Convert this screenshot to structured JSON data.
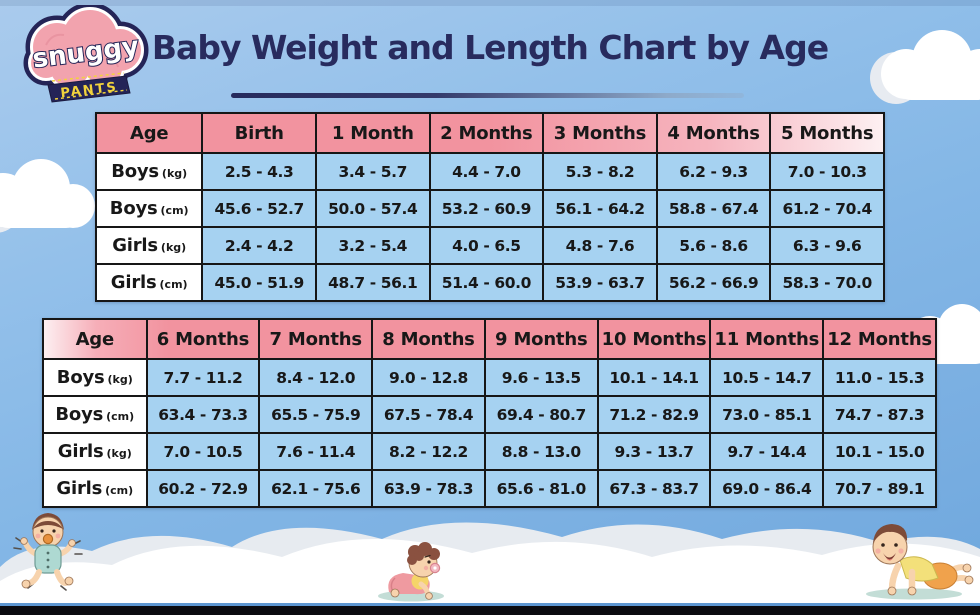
{
  "header": {
    "title": "Baby Weight and Length Chart by Age",
    "logo": {
      "brand": "snuggy",
      "sub": "PANTS"
    }
  },
  "colors": {
    "header_pink": "#f2939f",
    "cell_blue": "#a6d2f1",
    "title_navy": "#282b5e",
    "table_border": "#161616",
    "bottom_bar": "#0b0b10",
    "bottom_line": "#5d96d2",
    "logo_navy": "#242457",
    "logo_pink": "#f2a3ae",
    "banner_yellow": "#f2d33c"
  },
  "decor": {
    "icons": [
      "cloud-icon",
      "baby-sitting-icon",
      "baby-crawling-icon",
      "baby-pushup-icon"
    ]
  },
  "chart_data": [
    {
      "type": "table",
      "name": "age-birth-to-5-months",
      "columns": [
        "Age",
        "Birth",
        "1 Month",
        "2 Months",
        "3 Months",
        "4 Months",
        "5 Months"
      ],
      "rows": [
        {
          "label": "Boys",
          "unit": "(kg)",
          "values": [
            "2.5 - 4.3",
            "3.4 - 5.7",
            "4.4 - 7.0",
            "5.3 - 8.2",
            "6.2 - 9.3",
            "7.0 - 10.3"
          ]
        },
        {
          "label": "Boys",
          "unit": "(cm)",
          "values": [
            "45.6 - 52.7",
            "50.0 - 57.4",
            "53.2 - 60.9",
            "56.1 - 64.2",
            "58.8 - 67.4",
            "61.2 - 70.4"
          ]
        },
        {
          "label": "Girls",
          "unit": "(kg)",
          "values": [
            "2.4 - 4.2",
            "3.2 - 5.4",
            "4.0 - 6.5",
            "4.8 - 7.6",
            "5.6 - 8.6",
            "6.3 - 9.6"
          ]
        },
        {
          "label": "Girls",
          "unit": "(cm)",
          "values": [
            "45.0 - 51.9",
            "48.7 - 56.1",
            "51.4 - 60.0",
            "53.9 - 63.7",
            "56.2 - 66.9",
            "58.3 - 70.0"
          ]
        }
      ]
    },
    {
      "type": "table",
      "name": "age-6-to-12-months",
      "columns": [
        "Age",
        "6 Months",
        "7 Months",
        "8 Months",
        "9 Months",
        "10 Months",
        "11 Months",
        "12 Months"
      ],
      "rows": [
        {
          "label": "Boys",
          "unit": "(kg)",
          "values": [
            "7.7 - 11.2",
            "8.4 - 12.0",
            "9.0 - 12.8",
            "9.6 - 13.5",
            "10.1 - 14.1",
            "10.5 - 14.7",
            "11.0 - 15.3"
          ]
        },
        {
          "label": "Boys",
          "unit": "(cm)",
          "values": [
            "63.4 - 73.3",
            "65.5 - 75.9",
            "67.5 - 78.4",
            "69.4 - 80.7",
            "71.2 - 82.9",
            "73.0 - 85.1",
            "74.7 - 87.3"
          ]
        },
        {
          "label": "Girls",
          "unit": "(kg)",
          "values": [
            "7.0 - 10.5",
            "7.6 - 11.4",
            "8.2 - 12.2",
            "8.8 - 13.0",
            "9.3 - 13.7",
            "9.7 - 14.4",
            "10.1 - 15.0"
          ]
        },
        {
          "label": "Girls",
          "unit": "(cm)",
          "values": [
            "60.2 - 72.9",
            "62.1 - 75.6",
            "63.9 - 78.3",
            "65.6 - 81.0",
            "67.3 - 83.7",
            "69.0 - 86.4",
            "70.7 - 89.1"
          ]
        }
      ]
    }
  ]
}
